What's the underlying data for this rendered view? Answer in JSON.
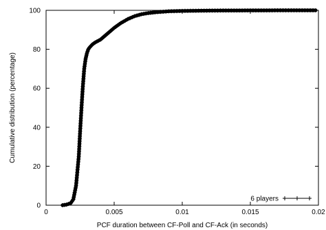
{
  "chart_data": {
    "type": "line",
    "xlabel": "PCF duration between CF-Poll and CF-Ack (in seconds)",
    "ylabel": "Cumulative distribution (percentage)",
    "xlim": [
      0,
      0.02
    ],
    "ylim": [
      0,
      100
    ],
    "x_ticks": [
      0,
      0.005,
      0.01,
      0.015,
      0.02
    ],
    "x_tick_labels": [
      "0",
      "0.005",
      "0.01",
      "0.015",
      "0.02"
    ],
    "y_ticks": [
      0,
      20,
      40,
      60,
      80,
      100
    ],
    "y_tick_labels": [
      "0",
      "20",
      "40",
      "60",
      "80",
      "100"
    ],
    "grid": false,
    "legend_position": "bottom-right",
    "series": [
      {
        "name": "6 players",
        "marker": "plus",
        "color": "#000000",
        "x": [
          0.0012,
          0.0015,
          0.0018,
          0.002,
          0.0022,
          0.0024,
          0.0025,
          0.0026,
          0.0027,
          0.0028,
          0.0029,
          0.003,
          0.0031,
          0.0032,
          0.0034,
          0.0036,
          0.004,
          0.0045,
          0.005,
          0.0055,
          0.006,
          0.0065,
          0.007,
          0.0075,
          0.008,
          0.009,
          0.01,
          0.011,
          0.012,
          0.013,
          0.014,
          0.015,
          0.016,
          0.017,
          0.018,
          0.019,
          0.0198
        ],
        "y": [
          0,
          0.3,
          1,
          3,
          10,
          25,
          38,
          50,
          61,
          70,
          75,
          78,
          80,
          81,
          82.5,
          83.5,
          85,
          88,
          91,
          93.5,
          95.5,
          97,
          98,
          98.6,
          99,
          99.5,
          99.7,
          99.8,
          99.85,
          99.9,
          99.92,
          99.95,
          99.97,
          99.98,
          99.99,
          100,
          100
        ]
      }
    ]
  }
}
